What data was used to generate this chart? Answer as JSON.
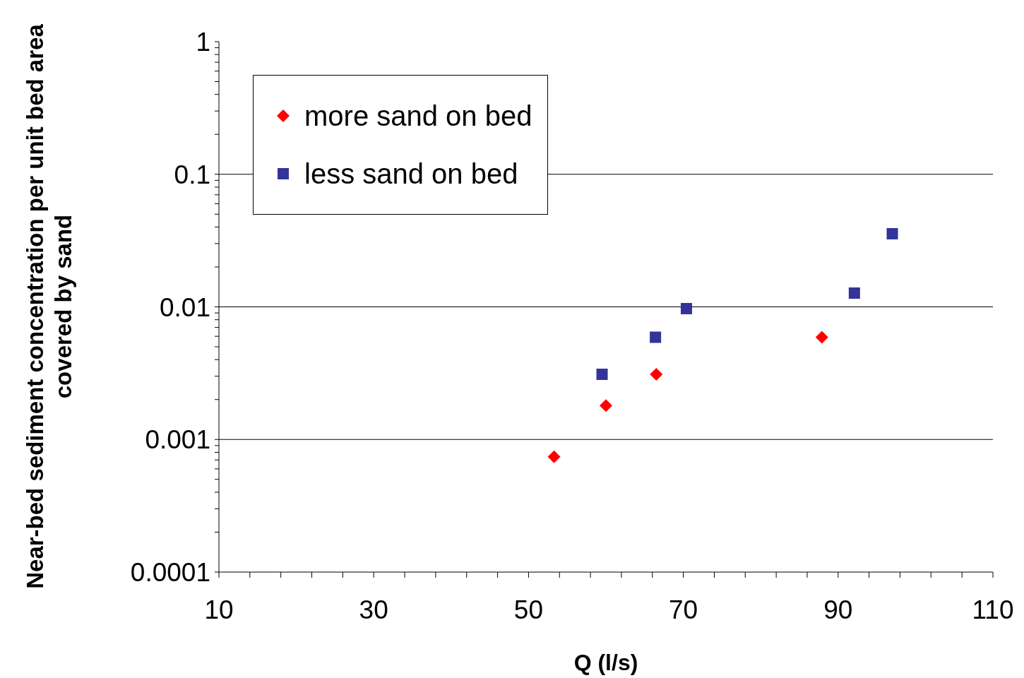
{
  "chart_data": {
    "type": "scatter",
    "xlabel": "Q (l/s)",
    "ylabel": "Near-bed sediment concentration per unit bed area covered by sand",
    "log": "y",
    "grid": "y",
    "legend": "top left",
    "xlim": [
      10,
      110
    ],
    "xticks": [
      10,
      {
        "value": 14,
        "label": null
      },
      {
        "value": 18,
        "label": null
      },
      {
        "value": 22,
        "label": null
      },
      {
        "value": 26,
        "label": null
      },
      30,
      {
        "value": 34,
        "label": null
      },
      {
        "value": 38,
        "label": null
      },
      {
        "value": 42,
        "label": null
      },
      {
        "value": 46,
        "label": null
      },
      50,
      {
        "value": 54,
        "label": null
      },
      {
        "value": 58,
        "label": null
      },
      {
        "value": 62,
        "label": null
      },
      {
        "value": 66,
        "label": null
      },
      70,
      {
        "value": 74,
        "label": null
      },
      {
        "value": 78,
        "label": null
      },
      {
        "value": 82,
        "label": null
      },
      {
        "value": 86,
        "label": null
      },
      90,
      {
        "value": 94,
        "label": null
      },
      {
        "value": 98,
        "label": null
      },
      {
        "value": 102,
        "label": null
      },
      {
        "value": 106,
        "label": null
      },
      110
    ],
    "ylim": [
      0.0001,
      1
    ],
    "yticks": [
      {
        "value": 0.0001,
        "label": "0.0001"
      },
      {
        "value": 0.0002,
        "label": null
      },
      {
        "value": 0.0003,
        "label": null
      },
      {
        "value": 0.0004,
        "label": null
      },
      {
        "value": 0.0005,
        "label": null
      },
      {
        "value": 0.0006,
        "label": null
      },
      {
        "value": 0.0007,
        "label": null
      },
      {
        "value": 0.0008,
        "label": null
      },
      {
        "value": 0.0009,
        "label": null
      },
      {
        "value": 0.001,
        "label": "0.001"
      },
      {
        "value": 0.002,
        "label": null
      },
      {
        "value": 0.003,
        "label": null
      },
      {
        "value": 0.004,
        "label": null
      },
      {
        "value": 0.005,
        "label": null
      },
      {
        "value": 0.006,
        "label": null
      },
      {
        "value": 0.007,
        "label": null
      },
      {
        "value": 0.008,
        "label": null
      },
      {
        "value": 0.009,
        "label": null
      },
      {
        "value": 0.01,
        "label": "0.01"
      },
      {
        "value": 0.02,
        "label": null
      },
      {
        "value": 0.03,
        "label": null
      },
      {
        "value": 0.04,
        "label": null
      },
      {
        "value": 0.05,
        "label": null
      },
      {
        "value": 0.06,
        "label": null
      },
      {
        "value": 0.07,
        "label": null
      },
      {
        "value": 0.08,
        "label": null
      },
      {
        "value": 0.09,
        "label": null
      },
      {
        "value": 0.1,
        "label": "0.1"
      },
      {
        "value": 0.2,
        "label": null
      },
      {
        "value": 0.3,
        "label": null
      },
      {
        "value": 0.4,
        "label": null
      },
      {
        "value": 0.5,
        "label": null
      },
      {
        "value": 0.6,
        "label": null
      },
      {
        "value": 0.7,
        "label": null
      },
      {
        "value": 0.8,
        "label": null
      },
      {
        "value": 0.9,
        "label": null
      },
      1
    ],
    "series": [
      {
        "name": "more sand on bed",
        "color": "#ff0000",
        "marker": "diamond",
        "x": [
          53.3,
          60.0,
          66.5,
          87.9
        ],
        "values": [
          0.00074,
          0.0018,
          0.0031,
          0.0059
        ]
      },
      {
        "name": "less sand on bed",
        "color": "#333399",
        "marker": "square",
        "x": [
          59.5,
          66.4,
          70.4,
          92.1,
          97.0
        ],
        "values": [
          0.0031,
          0.0059,
          0.0097,
          0.0127,
          0.0356
        ]
      }
    ]
  }
}
